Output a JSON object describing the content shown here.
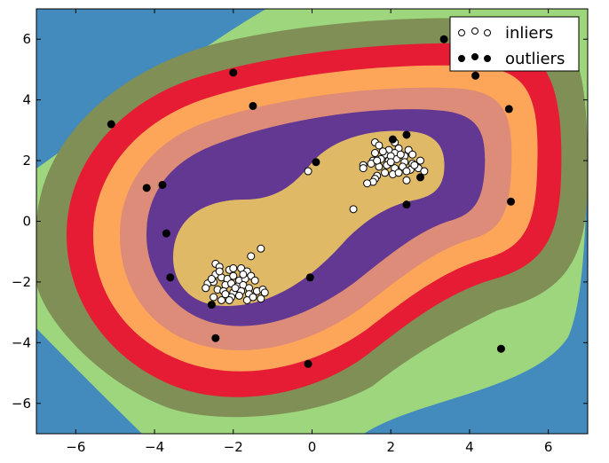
{
  "chart_data": {
    "type": "contour+scatter",
    "title": "",
    "xlabel": "",
    "ylabel": "",
    "xlim": [
      -7,
      7
    ],
    "ylim": [
      -7,
      7
    ],
    "grid": false,
    "xticks": [
      -6,
      -4,
      -2,
      0,
      2,
      4,
      6
    ],
    "yticks": [
      -6,
      -4,
      -2,
      0,
      2,
      4,
      6
    ],
    "xtick_labels": [
      "−6",
      "−4",
      "−2",
      "0",
      "2",
      "4",
      "6"
    ],
    "ytick_labels": [
      "−6",
      "−4",
      "−2",
      "0",
      "2",
      "4",
      "6"
    ],
    "contour_levels": [
      {
        "level": 0,
        "color": "#438bbc"
      },
      {
        "level": 1,
        "color": "#9ed67d"
      },
      {
        "level": 2,
        "color": "#7f8f56"
      },
      {
        "level": 3,
        "color": "#e61c35"
      },
      {
        "level": 4,
        "color": "#fda558"
      },
      {
        "level": 5,
        "color": "#dc8c78"
      },
      {
        "level": 6,
        "color": "#623892"
      },
      {
        "level": 7,
        "color": "#dfb966"
      }
    ],
    "legend": {
      "position": "top-right",
      "entries": [
        {
          "label": "inliers",
          "marker": "open-circle"
        },
        {
          "label": "outliers",
          "marker": "filled-circle"
        }
      ]
    },
    "series": [
      {
        "name": "inliers",
        "marker": "open-circle",
        "points": [
          [
            -1.3,
            -0.9
          ],
          [
            -1.55,
            -1.15
          ],
          [
            -2.45,
            -1.4
          ],
          [
            -2.35,
            -1.5
          ],
          [
            -2.1,
            -1.6
          ],
          [
            -2.0,
            -1.55
          ],
          [
            -1.8,
            -1.55
          ],
          [
            -1.65,
            -1.65
          ],
          [
            -1.55,
            -1.8
          ],
          [
            -2.45,
            -1.75
          ],
          [
            -2.3,
            -1.85
          ],
          [
            -2.15,
            -1.9
          ],
          [
            -2.0,
            -1.8
          ],
          [
            -1.85,
            -1.95
          ],
          [
            -1.7,
            -1.9
          ],
          [
            -1.45,
            -1.95
          ],
          [
            -2.65,
            -2.05
          ],
          [
            -2.5,
            -2.0
          ],
          [
            -2.2,
            -2.1
          ],
          [
            -2.05,
            -2.05
          ],
          [
            -1.9,
            -2.15
          ],
          [
            -1.75,
            -2.1
          ],
          [
            -1.6,
            -2.2
          ],
          [
            -1.4,
            -2.3
          ],
          [
            -2.7,
            -2.2
          ],
          [
            -2.4,
            -2.25
          ],
          [
            -2.25,
            -2.3
          ],
          [
            -2.0,
            -2.35
          ],
          [
            -1.8,
            -2.3
          ],
          [
            -1.6,
            -2.4
          ],
          [
            -1.25,
            -2.25
          ],
          [
            -1.2,
            -2.35
          ],
          [
            -2.5,
            -2.5
          ],
          [
            -2.3,
            -2.6
          ],
          [
            -2.05,
            -2.5
          ],
          [
            -1.85,
            -2.45
          ],
          [
            -1.65,
            -2.6
          ],
          [
            -1.3,
            -2.55
          ],
          [
            -2.2,
            -2.4
          ],
          [
            -1.95,
            -2.2
          ],
          [
            -2.35,
            -1.65
          ],
          [
            -1.75,
            -1.75
          ],
          [
            -2.55,
            -1.9
          ],
          [
            -1.5,
            -2.5
          ],
          [
            -2.1,
            -2.6
          ],
          [
            1.6,
            2.6
          ],
          [
            1.7,
            2.5
          ],
          [
            1.95,
            2.35
          ],
          [
            2.2,
            2.4
          ],
          [
            2.45,
            2.35
          ],
          [
            1.6,
            2.25
          ],
          [
            1.85,
            2.2
          ],
          [
            2.1,
            2.25
          ],
          [
            2.35,
            2.15
          ],
          [
            2.55,
            2.2
          ],
          [
            1.55,
            2.0
          ],
          [
            1.75,
            2.05
          ],
          [
            1.95,
            2.0
          ],
          [
            2.15,
            2.05
          ],
          [
            2.35,
            1.95
          ],
          [
            2.55,
            1.9
          ],
          [
            2.75,
            2.0
          ],
          [
            1.3,
            1.85
          ],
          [
            1.5,
            1.9
          ],
          [
            1.7,
            1.8
          ],
          [
            1.9,
            1.85
          ],
          [
            2.1,
            1.75
          ],
          [
            2.3,
            1.8
          ],
          [
            2.5,
            1.7
          ],
          [
            2.7,
            1.75
          ],
          [
            2.85,
            1.65
          ],
          [
            1.3,
            1.75
          ],
          [
            1.85,
            1.6
          ],
          [
            2.05,
            1.55
          ],
          [
            2.2,
            1.6
          ],
          [
            2.4,
            1.65
          ],
          [
            1.65,
            1.5
          ],
          [
            1.6,
            1.4
          ],
          [
            1.55,
            1.3
          ],
          [
            1.4,
            1.25
          ],
          [
            2.1,
            2.6
          ],
          [
            2.25,
            2.2
          ],
          [
            2.0,
            2.15
          ],
          [
            1.65,
            2.0
          ],
          [
            2.6,
            1.85
          ],
          [
            2.4,
            1.35
          ],
          [
            2.0,
            1.95
          ],
          [
            1.8,
            2.3
          ],
          [
            -0.1,
            1.65
          ],
          [
            1.05,
            0.4
          ]
        ]
      },
      {
        "name": "outliers",
        "marker": "filled-circle",
        "points": [
          [
            -5.1,
            3.2
          ],
          [
            -2.0,
            4.9
          ],
          [
            -1.5,
            3.8
          ],
          [
            -4.2,
            1.1
          ],
          [
            -3.8,
            1.2
          ],
          [
            -3.7,
            -0.4
          ],
          [
            -3.6,
            -1.85
          ],
          [
            -2.55,
            -2.75
          ],
          [
            -2.45,
            -3.85
          ],
          [
            -0.1,
            -4.7
          ],
          [
            -0.05,
            -1.85
          ],
          [
            0.1,
            1.95
          ],
          [
            2.05,
            2.7
          ],
          [
            2.4,
            2.85
          ],
          [
            2.75,
            1.45
          ],
          [
            2.4,
            0.55
          ],
          [
            3.35,
            6.0
          ],
          [
            4.15,
            4.8
          ],
          [
            5.0,
            3.7
          ],
          [
            5.05,
            0.65
          ],
          [
            4.8,
            -4.2
          ]
        ]
      }
    ]
  }
}
